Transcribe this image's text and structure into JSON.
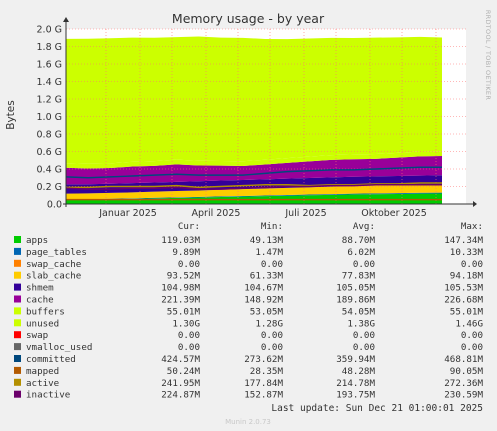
{
  "chart_data": {
    "type": "area",
    "title": "Memory usage - by year",
    "ylabel": "Bytes",
    "side_label": "RRDTOOL / TOBI OETIKER",
    "ylim": [
      0,
      2.0
    ],
    "y_unit": "G",
    "y_ticks": [
      "0.0",
      "0.2 G",
      "0.4 G",
      "0.6 G",
      "0.8 G",
      "1.0 G",
      "1.2 G",
      "1.4 G",
      "1.6 G",
      "1.8 G",
      "2.0 G"
    ],
    "x_ticks": [
      "Januar 2025",
      "April 2025",
      "Juli 2025",
      "Oktober 2025"
    ],
    "legend_headers": [
      "Cur:",
      "Min:",
      "Avg:",
      "Max:"
    ],
    "series": [
      {
        "name": "apps",
        "color": "#00cc00",
        "cur": "119.03M",
        "min": "49.13M",
        "avg": "88.70M",
        "max": "147.34M",
        "values": [
          0.05,
          0.052,
          0.055,
          0.06,
          0.065,
          0.07,
          0.075,
          0.08,
          0.085,
          0.09,
          0.095,
          0.1,
          0.105,
          0.11,
          0.112,
          0.115,
          0.118,
          0.12
        ]
      },
      {
        "name": "page_tables",
        "color": "#0066b3",
        "cur": "9.89M",
        "min": "1.47M",
        "avg": "6.02M",
        "max": "10.33M",
        "values": [
          0.004,
          0.004,
          0.005,
          0.005,
          0.006,
          0.006,
          0.006,
          0.007,
          0.007,
          0.007,
          0.008,
          0.008,
          0.008,
          0.009,
          0.009,
          0.009,
          0.01,
          0.01
        ]
      },
      {
        "name": "swap_cache",
        "color": "#ff8000",
        "cur": "0.00",
        "min": "0.00",
        "avg": "0.00",
        "max": "0.00",
        "values": [
          0,
          0,
          0,
          0,
          0,
          0,
          0,
          0,
          0,
          0,
          0,
          0,
          0,
          0,
          0,
          0,
          0,
          0
        ]
      },
      {
        "name": "slab_cache",
        "color": "#ffcc00",
        "cur": "93.52M",
        "min": "61.33M",
        "avg": "77.83M",
        "max": "94.18M",
        "values": [
          0.065,
          0.065,
          0.067,
          0.068,
          0.07,
          0.072,
          0.074,
          0.076,
          0.078,
          0.08,
          0.082,
          0.084,
          0.086,
          0.088,
          0.09,
          0.091,
          0.092,
          0.093
        ]
      },
      {
        "name": "shmem",
        "color": "#330099",
        "cur": "104.98M",
        "min": "104.67M",
        "avg": "105.05M",
        "max": "105.53M",
        "values": [
          0.105,
          0.105,
          0.105,
          0.105,
          0.105,
          0.105,
          0.105,
          0.105,
          0.105,
          0.105,
          0.105,
          0.105,
          0.105,
          0.105,
          0.105,
          0.105,
          0.105,
          0.105
        ]
      },
      {
        "name": "cache",
        "color": "#990099",
        "cur": "221.39M",
        "min": "148.92M",
        "avg": "189.86M",
        "max": "226.68M",
        "values": [
          0.19,
          0.18,
          0.18,
          0.19,
          0.19,
          0.2,
          0.18,
          0.17,
          0.16,
          0.17,
          0.18,
          0.19,
          0.2,
          0.2,
          0.2,
          0.21,
          0.22,
          0.22
        ]
      },
      {
        "name": "buffers",
        "color": "#ccff00",
        "cur": "55.01M",
        "min": "53.05M",
        "avg": "54.05M",
        "max": "55.01M",
        "values": [
          0.053,
          0.053,
          0.053,
          0.054,
          0.054,
          0.054,
          0.054,
          0.054,
          0.054,
          0.054,
          0.054,
          0.055,
          0.055,
          0.055,
          0.055,
          0.055,
          0.055,
          0.055
        ]
      },
      {
        "name": "unused",
        "color": "#ccff00",
        "cur": "1.30G",
        "min": "1.28G",
        "avg": "1.38G",
        "max": "1.46G",
        "values": [
          1.42,
          1.43,
          1.43,
          1.42,
          1.41,
          1.4,
          1.42,
          1.41,
          1.41,
          1.38,
          1.36,
          1.35,
          1.34,
          1.33,
          1.33,
          1.32,
          1.31,
          1.3
        ]
      },
      {
        "name": "swap",
        "color": "#ff0000",
        "cur": "0.00",
        "min": "0.00",
        "avg": "0.00",
        "max": "0.00",
        "values": null
      },
      {
        "name": "vmalloc_used",
        "color": "#666666",
        "cur": "0.00",
        "min": "0.00",
        "avg": "0.00",
        "max": "0.00",
        "values": null
      },
      {
        "name": "committed",
        "color": "#00487d",
        "cur": "424.57M",
        "min": "273.62M",
        "avg": "359.94M",
        "max": "468.81M",
        "values": [
          0.31,
          0.3,
          0.31,
          0.32,
          0.33,
          0.34,
          0.33,
          0.33,
          0.33,
          0.35,
          0.37,
          0.38,
          0.39,
          0.39,
          0.4,
          0.41,
          0.42,
          0.42
        ]
      },
      {
        "name": "mapped",
        "color": "#b35a00",
        "cur": "50.24M",
        "min": "28.35M",
        "avg": "48.28M",
        "max": "90.05M",
        "values": [
          0.05,
          0.05,
          0.05,
          0.05,
          0.05,
          0.05,
          0.05,
          0.05,
          0.05,
          0.05,
          0.05,
          0.05,
          0.05,
          0.05,
          0.05,
          0.05,
          0.05,
          0.05
        ]
      },
      {
        "name": "active",
        "color": "#b38f00",
        "cur": "241.95M",
        "min": "177.84M",
        "avg": "214.78M",
        "max": "272.36M",
        "values": [
          0.19,
          0.19,
          0.2,
          0.2,
          0.2,
          0.21,
          0.19,
          0.2,
          0.21,
          0.22,
          0.22,
          0.21,
          0.22,
          0.22,
          0.23,
          0.23,
          0.24,
          0.24
        ]
      },
      {
        "name": "inactive",
        "color": "#6b006b",
        "cur": "224.87M",
        "min": "152.87M",
        "avg": "193.75M",
        "max": "230.59M",
        "values": [
          0.18,
          0.17,
          0.17,
          0.18,
          0.18,
          0.19,
          0.17,
          0.17,
          0.18,
          0.19,
          0.2,
          0.2,
          0.21,
          0.21,
          0.22,
          0.22,
          0.22,
          0.22
        ]
      }
    ]
  },
  "footer": {
    "last_update": "Last update: Sun Dec 21 01:00:01 2025",
    "munin_version": "Munin 2.0.73"
  }
}
